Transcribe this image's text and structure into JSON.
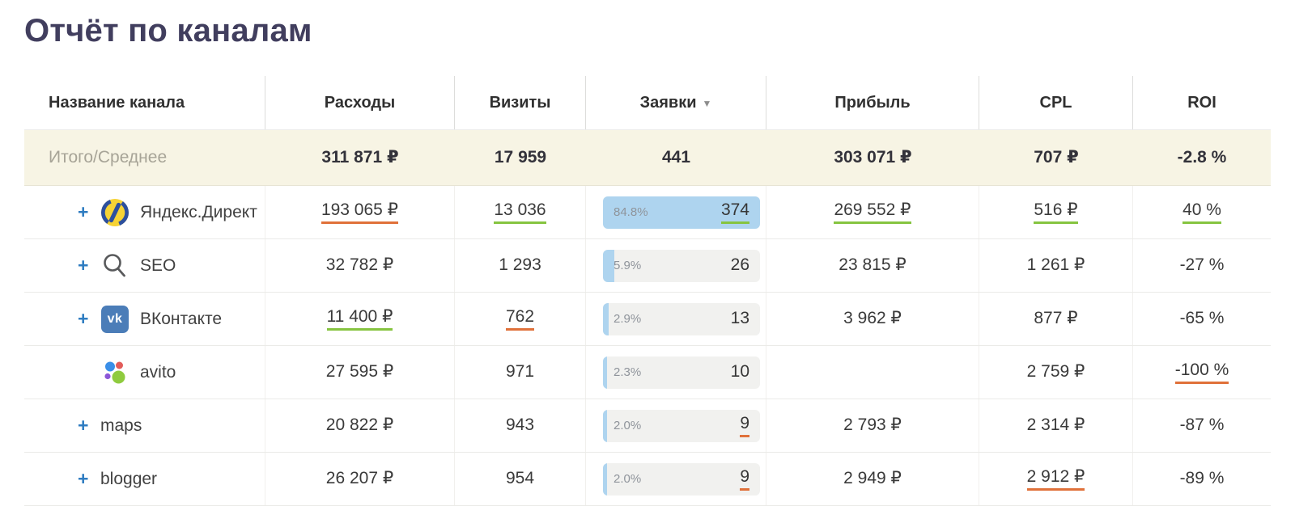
{
  "page": {
    "title": "Отчёт по каналам"
  },
  "colors": {
    "title": "#413e5e",
    "accent_blue": "#2e7cc1",
    "pill_fill_blue": "#aed4ef",
    "underline_positive_green": "#86c440",
    "underline_negative_orange": "#e0713a",
    "totals_row_bg": "#f7f4e4"
  },
  "table": {
    "expand_icon": "+",
    "header": {
      "name": "Название канала",
      "spend": "Расходы",
      "visits": "Визиты",
      "leads": "Заявки",
      "sort_desc_icon": "▼",
      "profit": "Прибыль",
      "cpl": "CPL",
      "roi": "ROI"
    },
    "totals": {
      "label": "Итого/Среднее",
      "spend": "311 871 ₽",
      "visits": "17 959",
      "leads": "441",
      "profit": "303 071 ₽",
      "cpl": "707 ₽",
      "roi": "-2.8 %"
    },
    "rows": [
      {
        "name": "Яндекс.Директ",
        "icon": "yandex-direct-logo",
        "expandable": true,
        "spend": {
          "v": "193 065 ₽",
          "u": "orange"
        },
        "visits": {
          "v": "13 036",
          "u": "green"
        },
        "leads": {
          "pct": "84.8%",
          "fill": 100,
          "v": "374",
          "u": "green"
        },
        "profit": {
          "v": "269 552 ₽",
          "u": "green"
        },
        "cpl": {
          "v": "516 ₽",
          "u": "green"
        },
        "roi": {
          "v": "40 %",
          "u": "green"
        }
      },
      {
        "name": "SEO",
        "icon": "search-icon",
        "expandable": true,
        "spend": {
          "v": "32 782 ₽",
          "u": null
        },
        "visits": {
          "v": "1 293",
          "u": null
        },
        "leads": {
          "pct": "5.9%",
          "fill": 7,
          "v": "26",
          "u": null
        },
        "profit": {
          "v": "23 815 ₽",
          "u": null
        },
        "cpl": {
          "v": "1 261 ₽",
          "u": null
        },
        "roi": {
          "v": "-27 %",
          "u": null
        }
      },
      {
        "name": "ВКонтакте",
        "icon": "vk-logo",
        "expandable": true,
        "spend": {
          "v": "11 400 ₽",
          "u": "green"
        },
        "visits": {
          "v": "762",
          "u": "orange"
        },
        "leads": {
          "pct": "2.9%",
          "fill": 3.5,
          "v": "13",
          "u": null
        },
        "profit": {
          "v": "3 962 ₽",
          "u": null
        },
        "cpl": {
          "v": "877 ₽",
          "u": null
        },
        "roi": {
          "v": "-65 %",
          "u": null
        }
      },
      {
        "name": "avito",
        "icon": "avito-logo",
        "expandable": false,
        "spend": {
          "v": "27 595 ₽",
          "u": null
        },
        "visits": {
          "v": "971",
          "u": null
        },
        "leads": {
          "pct": "2.3%",
          "fill": 2.7,
          "v": "10",
          "u": null
        },
        "profit": {
          "v": "",
          "u": null
        },
        "cpl": {
          "v": "2 759 ₽",
          "u": null
        },
        "roi": {
          "v": "-100 %",
          "u": "orange"
        }
      },
      {
        "name": "maps",
        "icon": null,
        "expandable": true,
        "spend": {
          "v": "20 822 ₽",
          "u": null
        },
        "visits": {
          "v": "943",
          "u": null
        },
        "leads": {
          "pct": "2.0%",
          "fill": 2.4,
          "v": "9",
          "u": "orange"
        },
        "profit": {
          "v": "2 793 ₽",
          "u": null
        },
        "cpl": {
          "v": "2 314 ₽",
          "u": null
        },
        "roi": {
          "v": "-87 %",
          "u": null
        }
      },
      {
        "name": "blogger",
        "icon": null,
        "expandable": true,
        "spend": {
          "v": "26 207 ₽",
          "u": null
        },
        "visits": {
          "v": "954",
          "u": null
        },
        "leads": {
          "pct": "2.0%",
          "fill": 2.4,
          "v": "9",
          "u": "orange"
        },
        "profit": {
          "v": "2 949 ₽",
          "u": null
        },
        "cpl": {
          "v": "2 912 ₽",
          "u": "orange"
        },
        "roi": {
          "v": "-89 %",
          "u": null
        }
      }
    ]
  }
}
